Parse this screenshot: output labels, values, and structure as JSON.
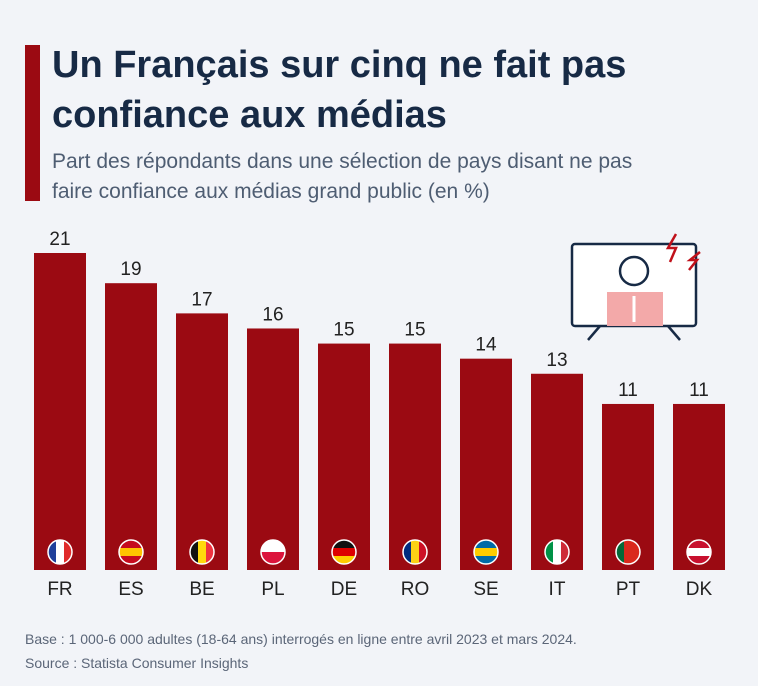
{
  "chart_data": {
    "type": "bar",
    "title": "Un Français sur cinq ne fait pas confiance aux médias",
    "subtitle": "Part des répondants dans une sélection de pays disant ne pas faire confiance aux médias grand public (en %)",
    "categories": [
      "FR",
      "ES",
      "BE",
      "PL",
      "DE",
      "RO",
      "SE",
      "IT",
      "PT",
      "DK"
    ],
    "values": [
      21,
      19,
      17,
      16,
      15,
      15,
      14,
      13,
      11,
      11
    ],
    "color": "#9b0a12",
    "note": "Base : 1 000-6 000 adultes (18-64 ans) interrogés en ligne entre avril 2023 et mars 2024.",
    "source": "Source : Statista Consumer Insights"
  }
}
